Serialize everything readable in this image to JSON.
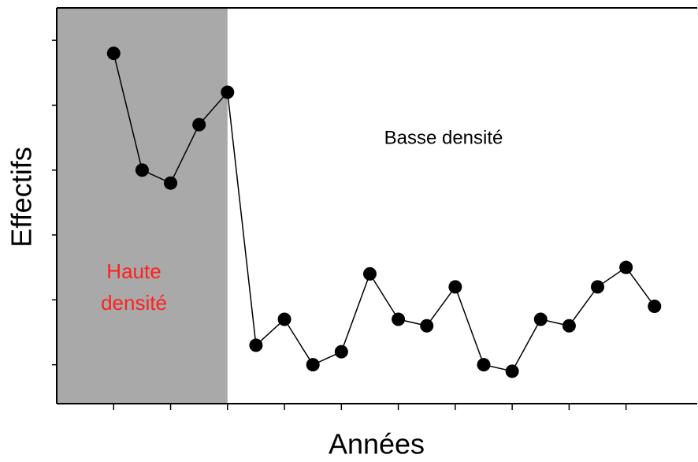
{
  "chart_data": {
    "type": "line",
    "x_label": "Années",
    "y_label": "Effectifs",
    "x": [
      1,
      2,
      3,
      4,
      5,
      6,
      7,
      8,
      9,
      10,
      11,
      12,
      13,
      14,
      15,
      16,
      17,
      18,
      19,
      20
    ],
    "series": [
      {
        "color": "#000000",
        "values": [
          4.8,
          3.0,
          2.8,
          3.7,
          4.2,
          0.3,
          0.7,
          0.0,
          0.2,
          1.4,
          0.7,
          0.6,
          1.2,
          0.0,
          -0.1,
          0.7,
          0.6,
          1.2,
          1.5,
          0.9
        ]
      }
    ],
    "xlim": [
      -1,
      21.5
    ],
    "ylim": [
      -0.6,
      5.5
    ],
    "xticks": [
      1,
      3,
      5,
      7,
      9,
      11,
      13,
      15,
      17,
      19
    ],
    "yticks": [
      0,
      1,
      2,
      3,
      4,
      5
    ],
    "shaded_region": {
      "xlim": [
        -1,
        5
      ],
      "color": "#a9a9a9",
      "label_lines": [
        "Haute",
        "densité"
      ],
      "label_color": "#ff2020"
    },
    "annotation": "Basse densité"
  }
}
